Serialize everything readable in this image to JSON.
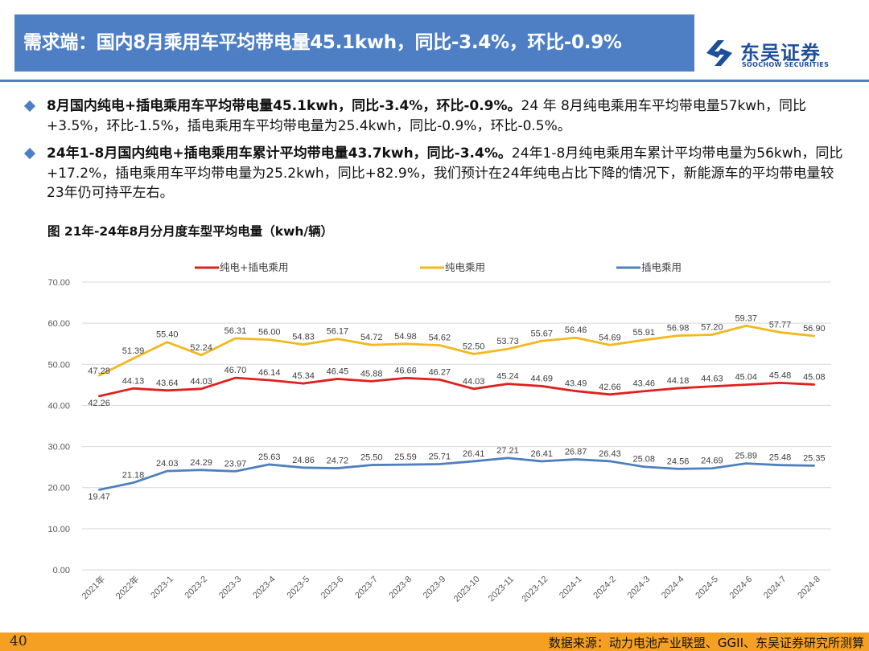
{
  "header": {
    "title": "需求端：国内8月乘用车平均带电量45.1kwh，同比-3.4%，环比-0.9%",
    "logo_cn": "东吴证券",
    "logo_en": "SOOCHOW SECURITIES"
  },
  "bullets": [
    {
      "bold": "8月国内纯电+插电乘用车平均带电量45.1kwh，同比-3.4%，环比-0.9%。",
      "text": "24 年 8月纯电乘用车平均带电量57kwh，同比+3.5%，环比-1.5%，插电乘用车平均带电量为25.4kwh，同比-0.9%，环比-0.5%。"
    },
    {
      "bold": "24年1-8月国内纯电+插电乘用车累计平均带电量43.7kwh，同比-3.4%。",
      "text": "24年1-8月纯电乘用车累计平均带电量为56kwh，同比+17.2%，插电乘用车平均带电量为25.2kwh，同比+82.9%，我们预计在24年纯电占比下降的情况下，新能源车的平均带电量较23年仍可持平左右。"
    }
  ],
  "figure_title": "图  21年-24年8月分月度车型平均电量（kwh/辆）",
  "chart_data": {
    "type": "line",
    "categories": [
      "2021年",
      "2022年",
      "2023-1",
      "2023-2",
      "2023-3",
      "2023-4",
      "2023-5",
      "2023-6",
      "2023-7",
      "2023-8",
      "2023-9",
      "2023-10",
      "2023-11",
      "2023-12",
      "2024-1",
      "2024-2",
      "2024-3",
      "2024-4",
      "2024-5",
      "2024-6",
      "2024-7",
      "2024-8"
    ],
    "series": [
      {
        "name": "纯电+插电乘用",
        "color": "#e0201e",
        "values": [
          42.26,
          44.13,
          43.64,
          44.03,
          46.7,
          46.14,
          45.34,
          46.45,
          45.88,
          46.66,
          46.27,
          44.03,
          45.24,
          44.69,
          43.49,
          42.66,
          43.46,
          44.18,
          44.63,
          45.04,
          45.48,
          45.08
        ]
      },
      {
        "name": "纯电乘用",
        "color": "#f2b81c",
        "values": [
          47.28,
          51.39,
          55.4,
          52.24,
          56.31,
          56.0,
          54.83,
          56.17,
          54.72,
          54.98,
          54.62,
          52.5,
          53.73,
          55.67,
          56.46,
          54.69,
          55.91,
          56.98,
          57.2,
          59.37,
          57.77,
          56.9
        ]
      },
      {
        "name": "插电乘用",
        "color": "#4f80bd",
        "values": [
          19.47,
          21.18,
          24.03,
          24.29,
          23.97,
          25.63,
          24.86,
          24.72,
          25.5,
          25.59,
          25.71,
          26.41,
          27.21,
          26.41,
          26.87,
          26.43,
          25.08,
          24.56,
          24.69,
          25.89,
          25.48,
          25.35
        ]
      }
    ],
    "ylim": [
      0,
      70
    ],
    "yticks": [
      "0.00",
      "10.00",
      "20.00",
      "30.00",
      "40.00",
      "50.00",
      "60.00",
      "70.00"
    ],
    "grid": true,
    "legend": "top"
  },
  "footer": {
    "page": "40",
    "source": "数据来源：动力电池产业联盟、GGII、东吴证券研究所测算"
  }
}
